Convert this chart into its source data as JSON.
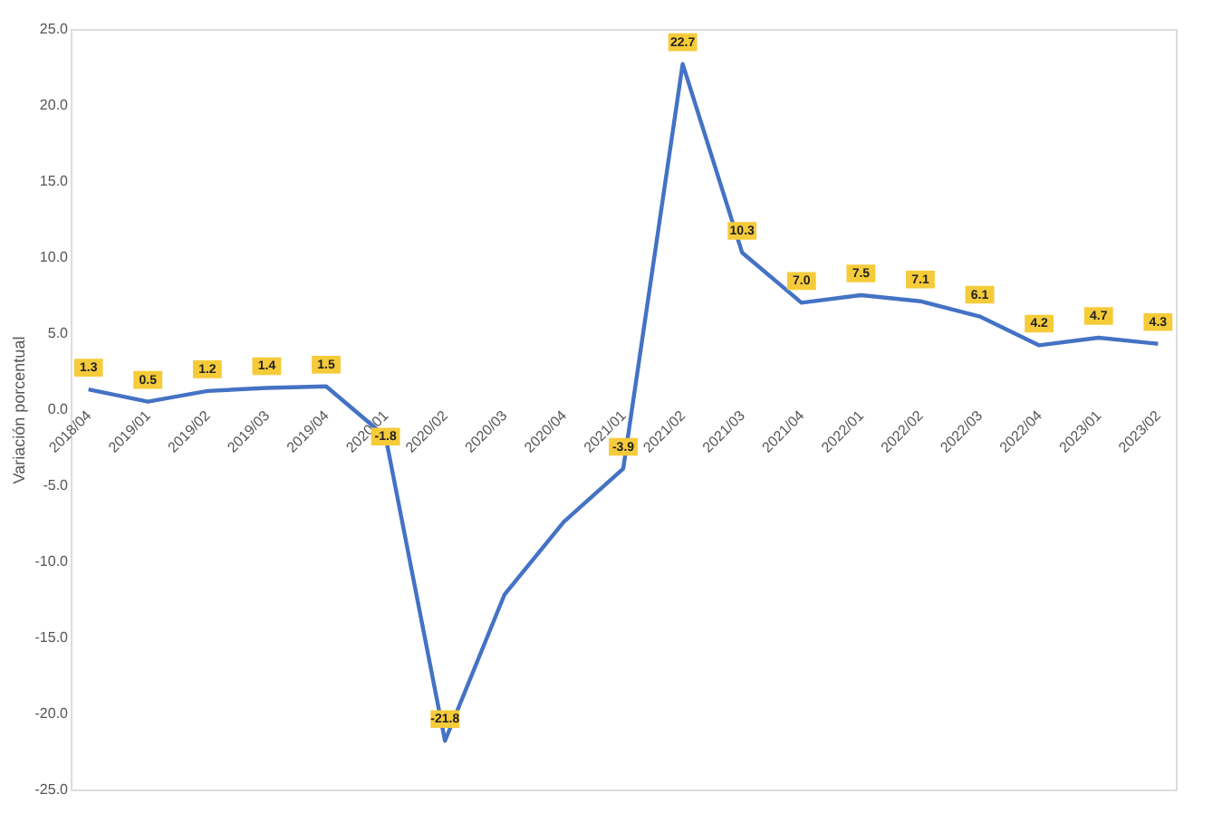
{
  "chart_data": {
    "type": "line",
    "ylabel": "Variación porcentual",
    "categories": [
      "2018/04",
      "2019/01",
      "2019/02",
      "2019/03",
      "2019/04",
      "2020/01",
      "2020/02",
      "2020/03",
      "2020/04",
      "2021/01",
      "2021/02",
      "2021/03",
      "2021/04",
      "2022/01",
      "2022/02",
      "2022/03",
      "2022/04",
      "2023/01",
      "2023/02"
    ],
    "series": [
      {
        "color": "#4472c4",
        "values": [
          1.3,
          0.5,
          1.2,
          1.4,
          1.5,
          -1.8,
          -21.8,
          -12.2,
          -7.4,
          -3.9,
          22.7,
          10.3,
          7.0,
          7.5,
          7.1,
          6.1,
          4.2,
          4.7,
          4.3
        ],
        "value_labels": [
          "1.3",
          "0.5",
          "1.2",
          "1.4",
          "1.5",
          "-1.8",
          "-21.8",
          null,
          null,
          "-3.9",
          "22.7",
          "10.3",
          "7.0",
          "7.5",
          "7.1",
          "6.1",
          "4.2",
          "4.7",
          "4.3"
        ]
      }
    ],
    "ylim": [
      -25,
      25
    ],
    "yticks": [
      {
        "value": -25,
        "label": "-25.0"
      },
      {
        "value": -20,
        "label": "-20.0"
      },
      {
        "value": -15,
        "label": "-15.0"
      },
      {
        "value": -10,
        "label": "-10.0"
      },
      {
        "value": -5,
        "label": "-5.0"
      },
      {
        "value": 0,
        "label": "0.0"
      },
      {
        "value": 5,
        "label": "5.0"
      },
      {
        "value": 10,
        "label": "10.0"
      },
      {
        "value": 15,
        "label": "15.0"
      },
      {
        "value": 20,
        "label": "20.0"
      },
      {
        "value": 25,
        "label": "25.0"
      }
    ],
    "grid": false,
    "marker": "none",
    "line_style": "solid"
  }
}
